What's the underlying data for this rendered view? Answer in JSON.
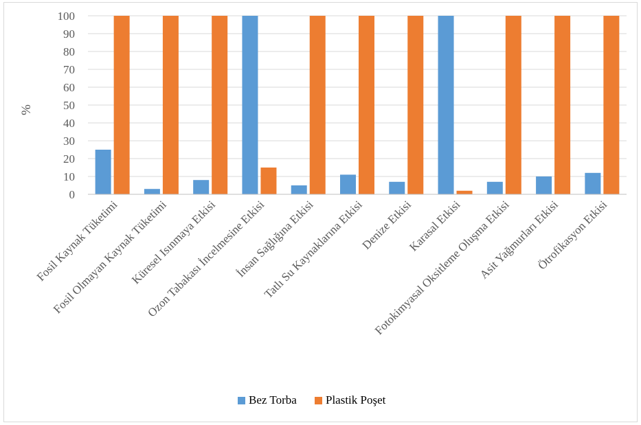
{
  "chart_data": {
    "type": "bar",
    "title": "",
    "xlabel": "",
    "ylabel": "%",
    "ylim": [
      0,
      100
    ],
    "yticks": [
      0,
      10,
      20,
      30,
      40,
      50,
      60,
      70,
      80,
      90,
      100
    ],
    "grid": true,
    "legend_position": "bottom",
    "categories": [
      "Fosil Kaynak Tüketimi",
      "Fosil Olmayan Kaynak Tüketimi",
      "Küresel Isınmaya Etkisi",
      "Ozon Tabakası İncelmesine Etkisi",
      "İnsan Sağlığına Etkisi",
      "Tatlı Su Kaynaklarına Etkisi",
      "Denize Etkisi",
      "Karasal Etkisi",
      "Fotokimyasal Oksitleme Oluşma Etkisi",
      "Asit Yağmurları Etkisi",
      "Ötrofikasyon Etkisi"
    ],
    "series": [
      {
        "name": "Bez Torba",
        "color": "#5b9bd5",
        "values": [
          25,
          3,
          8,
          100,
          5,
          11,
          7,
          100,
          7,
          10,
          12
        ]
      },
      {
        "name": "Plastik Poşet",
        "color": "#ed7d31",
        "values": [
          100,
          100,
          100,
          15,
          100,
          100,
          100,
          2,
          100,
          100,
          100
        ]
      }
    ]
  }
}
